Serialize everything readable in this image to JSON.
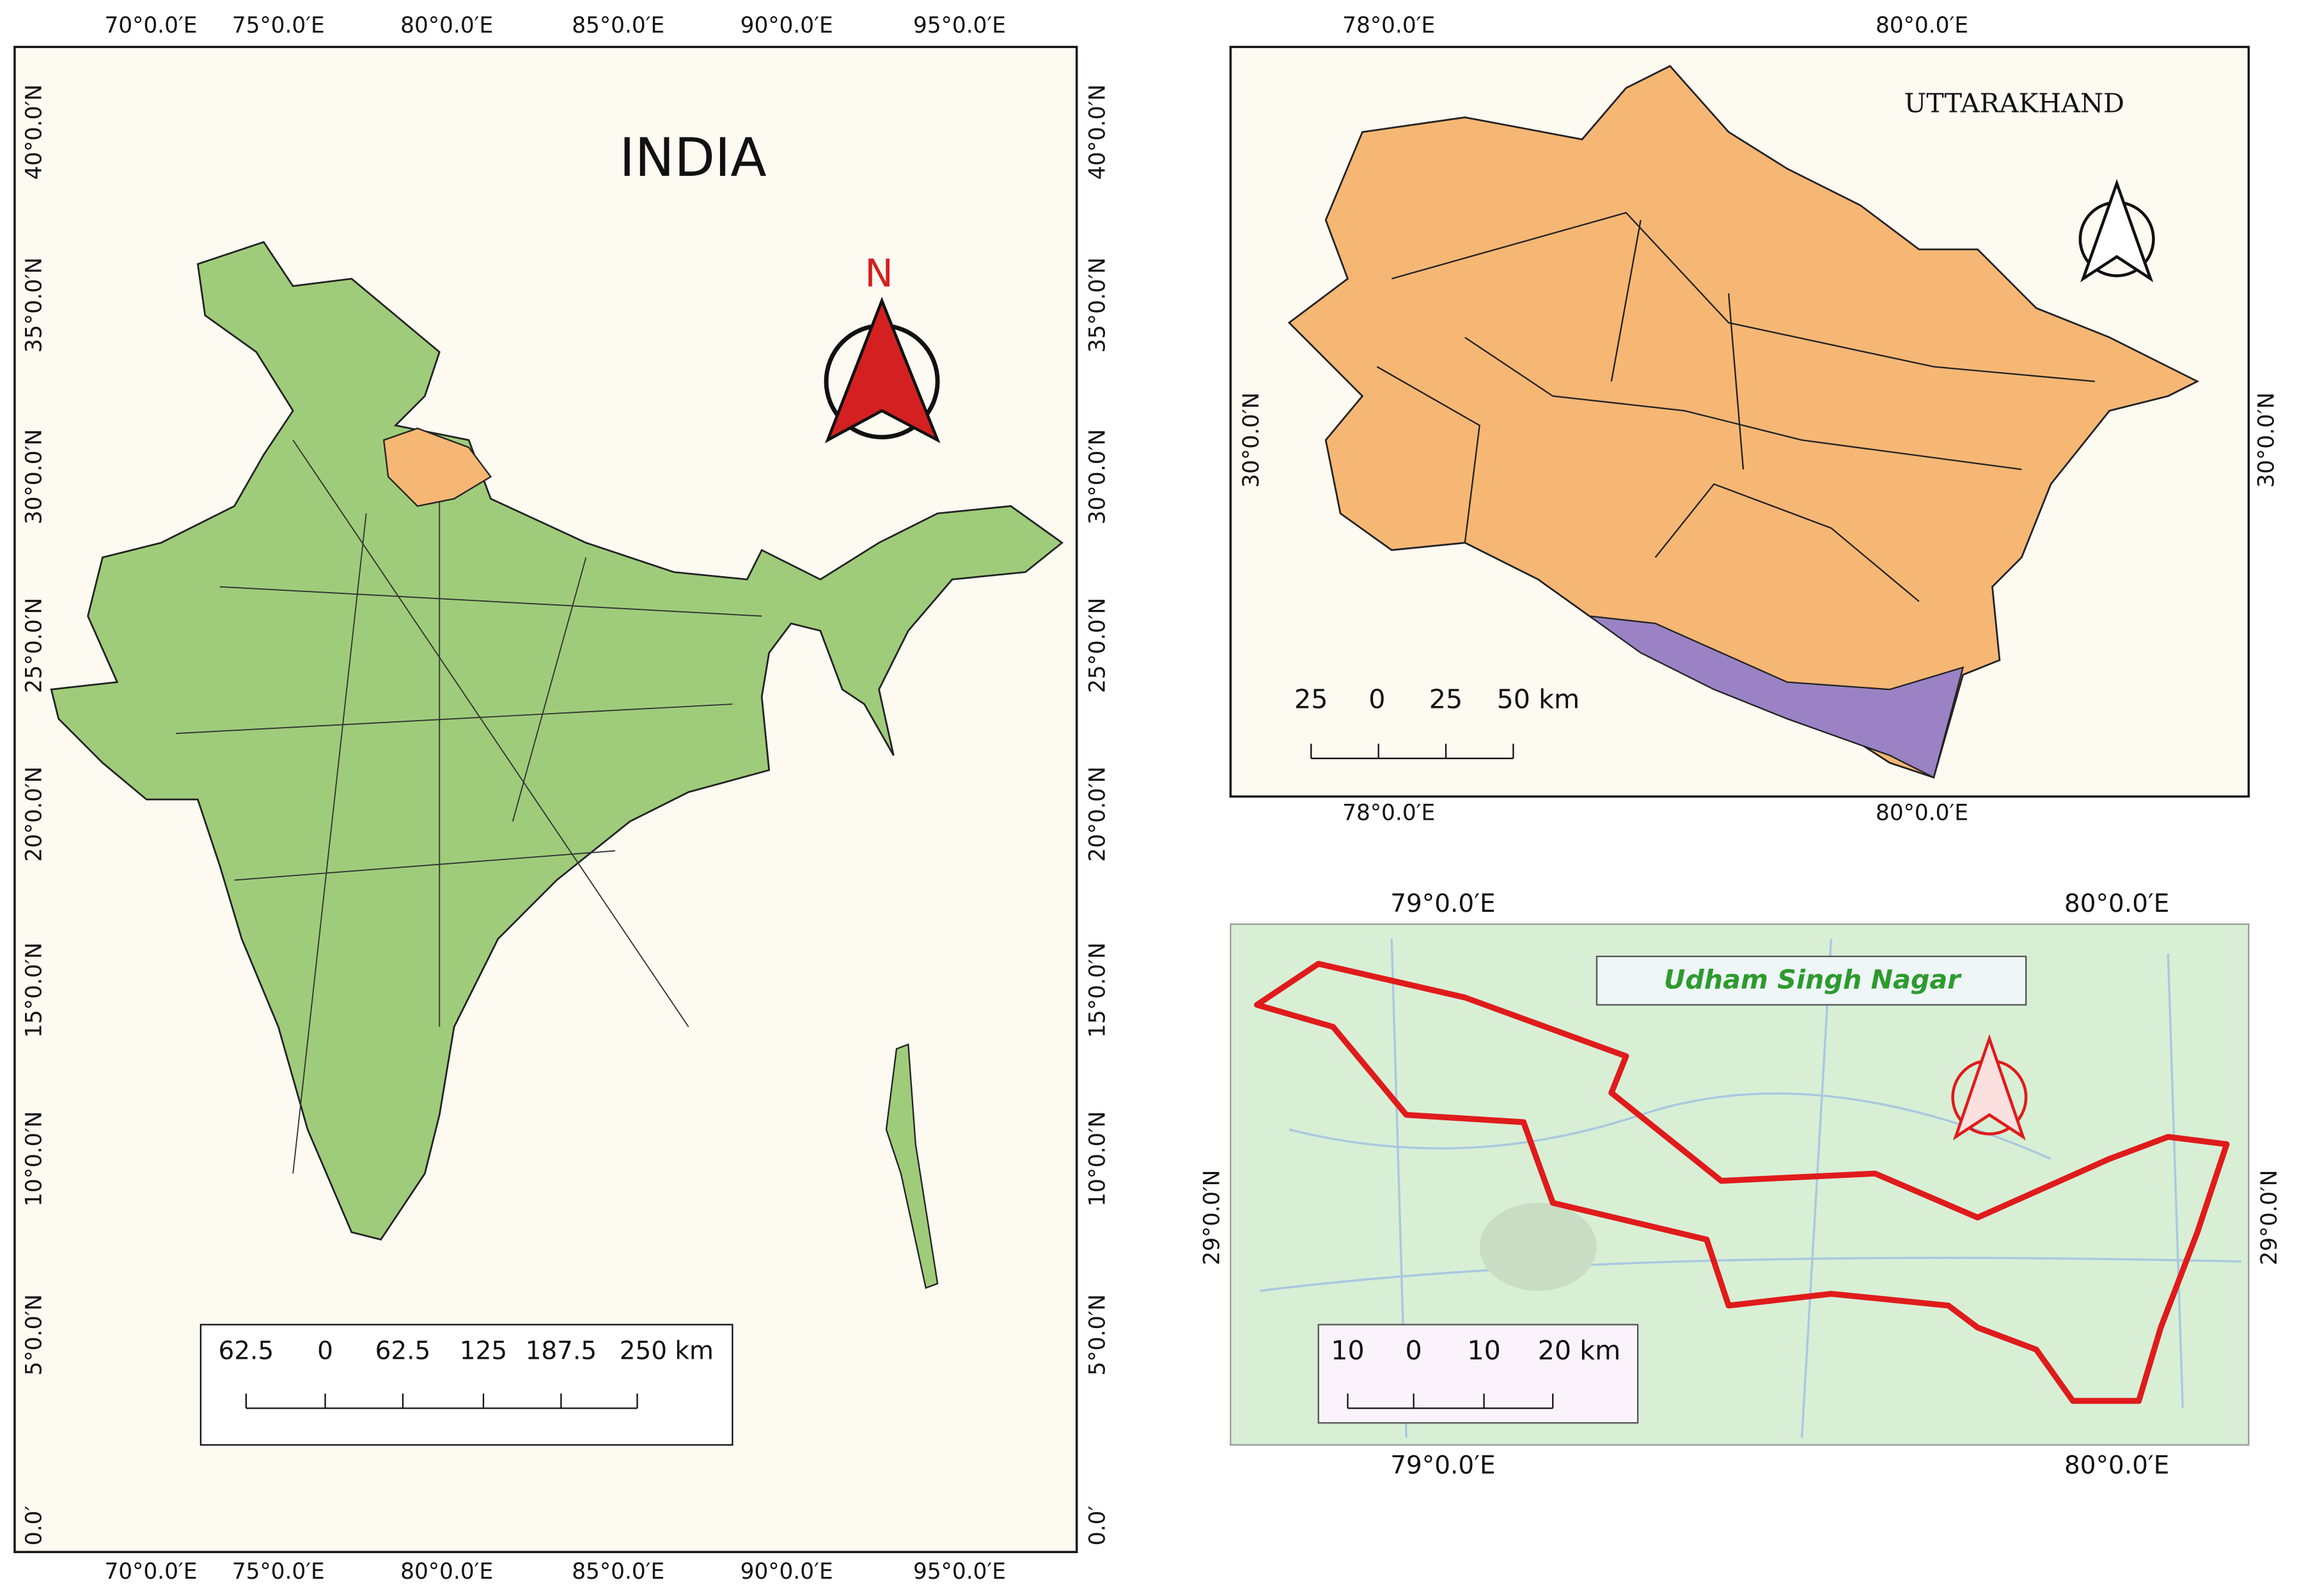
{
  "india": {
    "title": "INDIA",
    "north": "N",
    "top_labels": [
      "70°0.0′E",
      "75°0.0′E",
      "80°0.0′E",
      "85°0.0′E",
      "90°0.0′E",
      "95°0.0′E"
    ],
    "bottom_labels": [
      "70°0.0′E",
      "75°0.0′E",
      "80°0.0′E",
      "85°0.0′E",
      "90°0.0′E",
      "95°0.0′E"
    ],
    "left_labels": [
      "40°0.0′N",
      "35°0.0′N",
      "30°0.0′N",
      "25°0.0′N",
      "20°0.0′N",
      "15°0.0′N",
      "10°0.0′N",
      "5°0.0′N",
      "0.0′"
    ],
    "right_labels": [
      "40°0.0′N",
      "35°0.0′N",
      "30°0.0′N",
      "25°0.0′N",
      "20°0.0′N",
      "15°0.0′N",
      "10°0.0′N",
      "5°0.0′N",
      "0.0′"
    ],
    "scale": [
      "62.5",
      "0",
      "62.5",
      "125",
      "187.5",
      "250 km"
    ]
  },
  "uttarakhand": {
    "title": "UTTARAKHAND",
    "top_labels": [
      "78°0.0′E",
      "80°0.0′E"
    ],
    "bottom_labels": [
      "78°0.0′E",
      "80°0.0′E"
    ],
    "left_labels": [
      "30°0.0′N"
    ],
    "right_labels": [
      "30°0.0′N"
    ],
    "scale": [
      "25",
      "0",
      "25",
      "50 km"
    ]
  },
  "udham_singh_nagar": {
    "title": "Udham Singh Nagar",
    "top_labels": [
      "79°0.0′E",
      "80°0.0′E"
    ],
    "bottom_labels": [
      "79°0.0′E",
      "80°0.0′E"
    ],
    "left_labels": [
      "29°0.0′N"
    ],
    "right_labels": [
      "29°0.0′N"
    ],
    "scale": [
      "10",
      "0",
      "10",
      "20 km"
    ]
  }
}
